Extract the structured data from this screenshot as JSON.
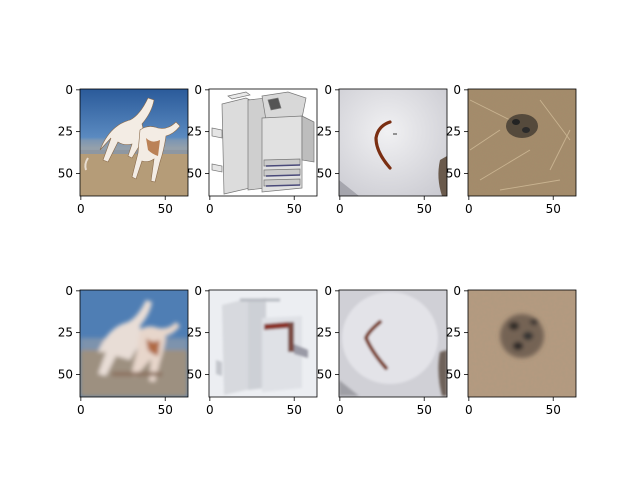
{
  "figure": {
    "rows": 2,
    "cols": 4,
    "panels": [
      {
        "id": "top-1",
        "subject": "dogs-on-beach",
        "row": 0,
        "col": 0
      },
      {
        "id": "top-2",
        "subject": "copier-machine",
        "row": 0,
        "col": 1
      },
      {
        "id": "top-3",
        "subject": "worm-on-paper",
        "row": 0,
        "col": 2
      },
      {
        "id": "top-4",
        "subject": "nest-in-straw",
        "row": 0,
        "col": 3
      },
      {
        "id": "bottom-1",
        "subject": "dogs-on-beach-reconstruction",
        "row": 1,
        "col": 0
      },
      {
        "id": "bottom-2",
        "subject": "copier-machine-reconstruction",
        "row": 1,
        "col": 1
      },
      {
        "id": "bottom-3",
        "subject": "worm-on-paper-reconstruction",
        "row": 1,
        "col": 2
      },
      {
        "id": "bottom-4",
        "subject": "nest-in-straw-reconstruction",
        "row": 1,
        "col": 3
      }
    ],
    "x_ticks": [
      "0",
      "50"
    ],
    "y_ticks": [
      "0",
      "25",
      "50"
    ]
  }
}
